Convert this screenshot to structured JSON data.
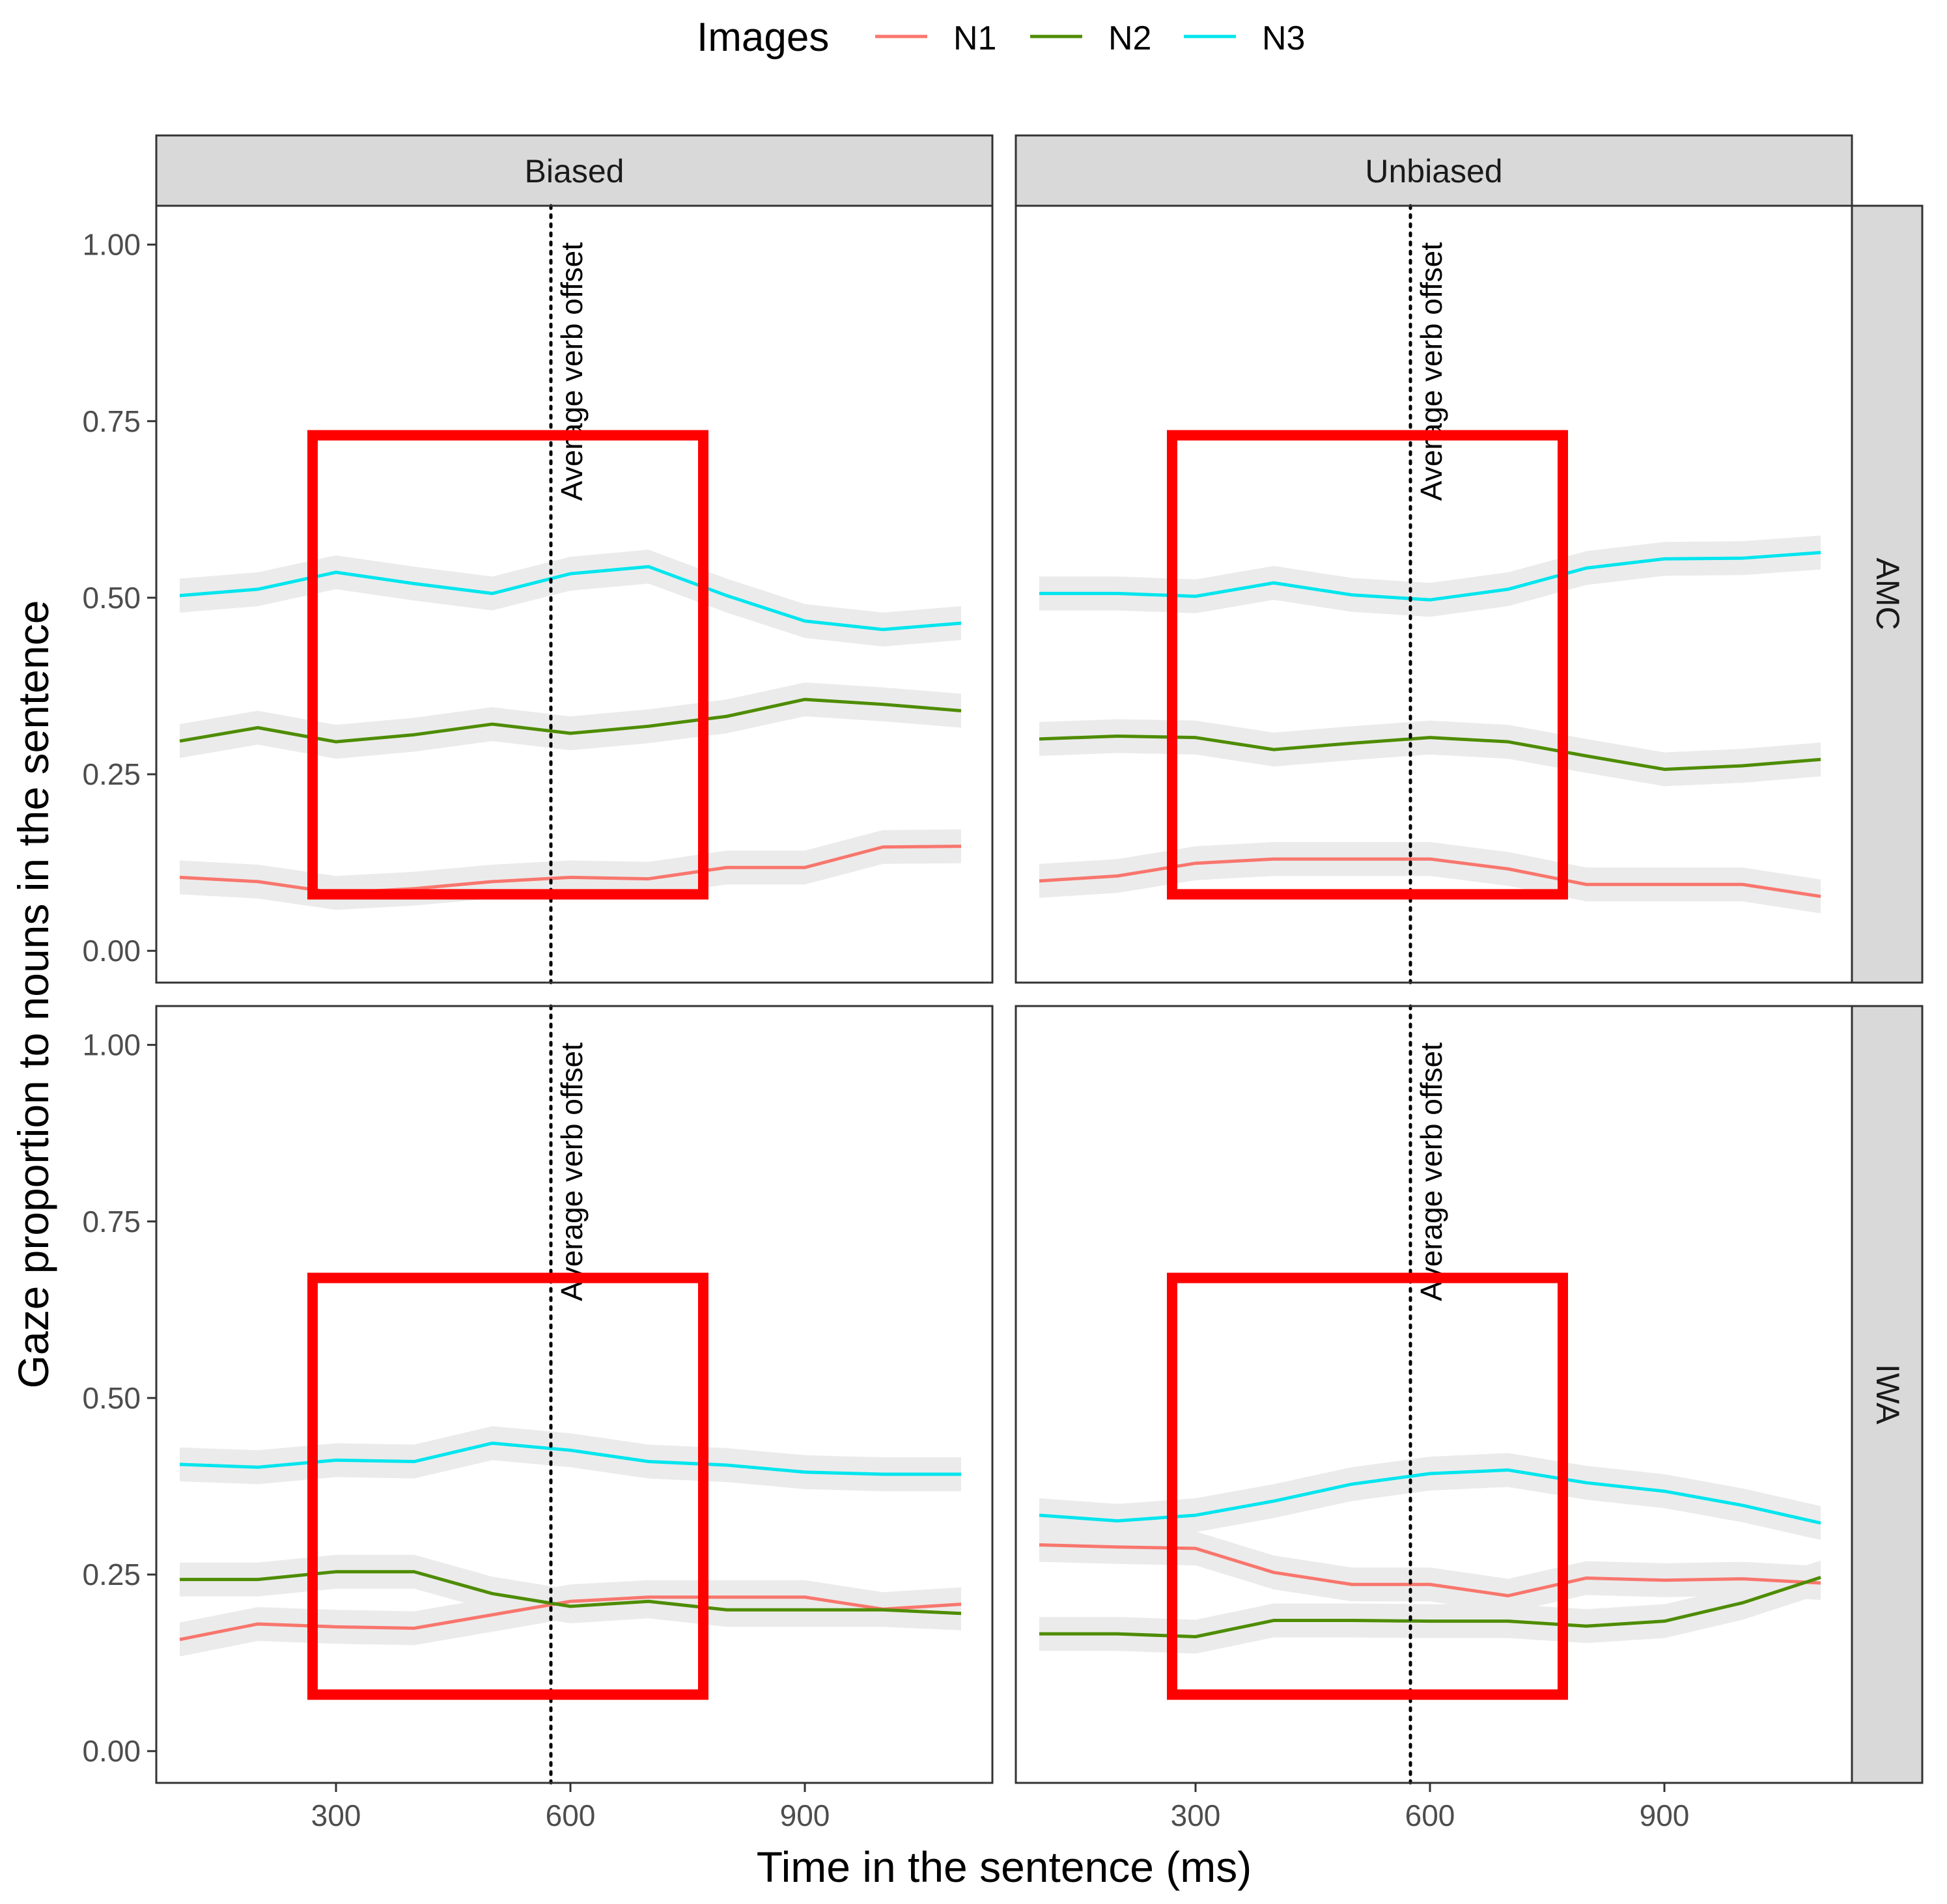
{
  "chart_data": {
    "type": "line",
    "xlabel": "Time in the sentence (ms)",
    "ylabel": "Gaze proportion to nouns in the sentence",
    "xlim": [
      70,
      1140
    ],
    "ylim": [
      -0.045,
      1.055
    ],
    "x_ticks": [
      300,
      600,
      900
    ],
    "y_ticks": [
      0.0,
      0.25,
      0.5,
      0.75,
      1.0
    ],
    "x_tick_labels": [
      "300",
      "600",
      "900"
    ],
    "y_tick_labels": [
      "0.00",
      "0.25",
      "0.50",
      "0.75",
      "1.00"
    ],
    "legend": {
      "title": "Images",
      "placement": "top",
      "entries": [
        {
          "name": "N1",
          "color": "#f8766d"
        },
        {
          "name": "N2",
          "color": "#4e8c00"
        },
        {
          "name": "N3",
          "color": "#00e5ee"
        }
      ]
    },
    "ribbon_color": "#ebebeb",
    "highlight_color": "#ff0000",
    "column_facets": [
      "Biased",
      "Unbiased"
    ],
    "row_facets": [
      "AMC",
      "IWA"
    ],
    "x": [
      100,
      200,
      300,
      400,
      500,
      600,
      700,
      800,
      900,
      1000,
      1100
    ],
    "reference_line": {
      "x": 575,
      "label": "Average verb offset"
    },
    "highlight_box": {
      "x_range": [
        270,
        770
      ],
      "y_range_by_row": {
        "AMC": [
          0.08,
          0.73
        ],
        "IWA": [
          0.08,
          0.67
        ]
      }
    },
    "panels": [
      {
        "column": "Biased",
        "row": "AMC",
        "series": [
          {
            "name": "N1",
            "values": [
              0.104,
              0.098,
              0.082,
              0.088,
              0.098,
              0.104,
              0.102,
              0.118,
              0.118,
              0.147,
              0.148
            ]
          },
          {
            "name": "N2",
            "values": [
              0.297,
              0.316,
              0.296,
              0.306,
              0.321,
              0.308,
              0.318,
              0.332,
              0.356,
              0.349,
              0.34
            ]
          },
          {
            "name": "N3",
            "values": [
              0.503,
              0.512,
              0.536,
              0.52,
              0.506,
              0.534,
              0.544,
              0.503,
              0.467,
              0.455,
              0.464
            ]
          }
        ]
      },
      {
        "column": "Unbiased",
        "row": "AMC",
        "series": [
          {
            "name": "N1",
            "values": [
              0.099,
              0.106,
              0.124,
              0.13,
              0.13,
              0.13,
              0.116,
              0.094,
              0.094,
              0.094,
              0.077
            ]
          },
          {
            "name": "N2",
            "values": [
              0.3,
              0.304,
              0.302,
              0.285,
              0.294,
              0.302,
              0.296,
              0.276,
              0.257,
              0.262,
              0.271
            ]
          },
          {
            "name": "N3",
            "values": [
              0.506,
              0.506,
              0.502,
              0.521,
              0.504,
              0.497,
              0.512,
              0.542,
              0.555,
              0.556,
              0.564
            ]
          }
        ]
      },
      {
        "column": "Biased",
        "row": "IWA",
        "series": [
          {
            "name": "N1",
            "values": [
              0.158,
              0.18,
              0.176,
              0.174,
              0.193,
              0.212,
              0.218,
              0.218,
              0.218,
              0.201,
              0.208
            ]
          },
          {
            "name": "N2",
            "values": [
              0.243,
              0.243,
              0.254,
              0.254,
              0.223,
              0.205,
              0.212,
              0.2,
              0.2,
              0.2,
              0.195
            ]
          },
          {
            "name": "N3",
            "values": [
              0.406,
              0.402,
              0.412,
              0.41,
              0.436,
              0.426,
              0.41,
              0.405,
              0.395,
              0.392,
              0.392
            ]
          }
        ]
      },
      {
        "column": "Unbiased",
        "row": "IWA",
        "series": [
          {
            "name": "N1",
            "values": [
              0.292,
              0.289,
              0.287,
              0.253,
              0.236,
              0.236,
              0.22,
              0.245,
              0.242,
              0.244,
              0.238
            ]
          },
          {
            "name": "N2",
            "values": [
              0.166,
              0.166,
              0.162,
              0.185,
              0.185,
              0.184,
              0.184,
              0.177,
              0.184,
              0.21,
              0.246
            ]
          },
          {
            "name": "N3",
            "values": [
              0.334,
              0.326,
              0.334,
              0.354,
              0.378,
              0.393,
              0.398,
              0.38,
              0.368,
              0.348,
              0.323
            ]
          }
        ]
      }
    ]
  }
}
